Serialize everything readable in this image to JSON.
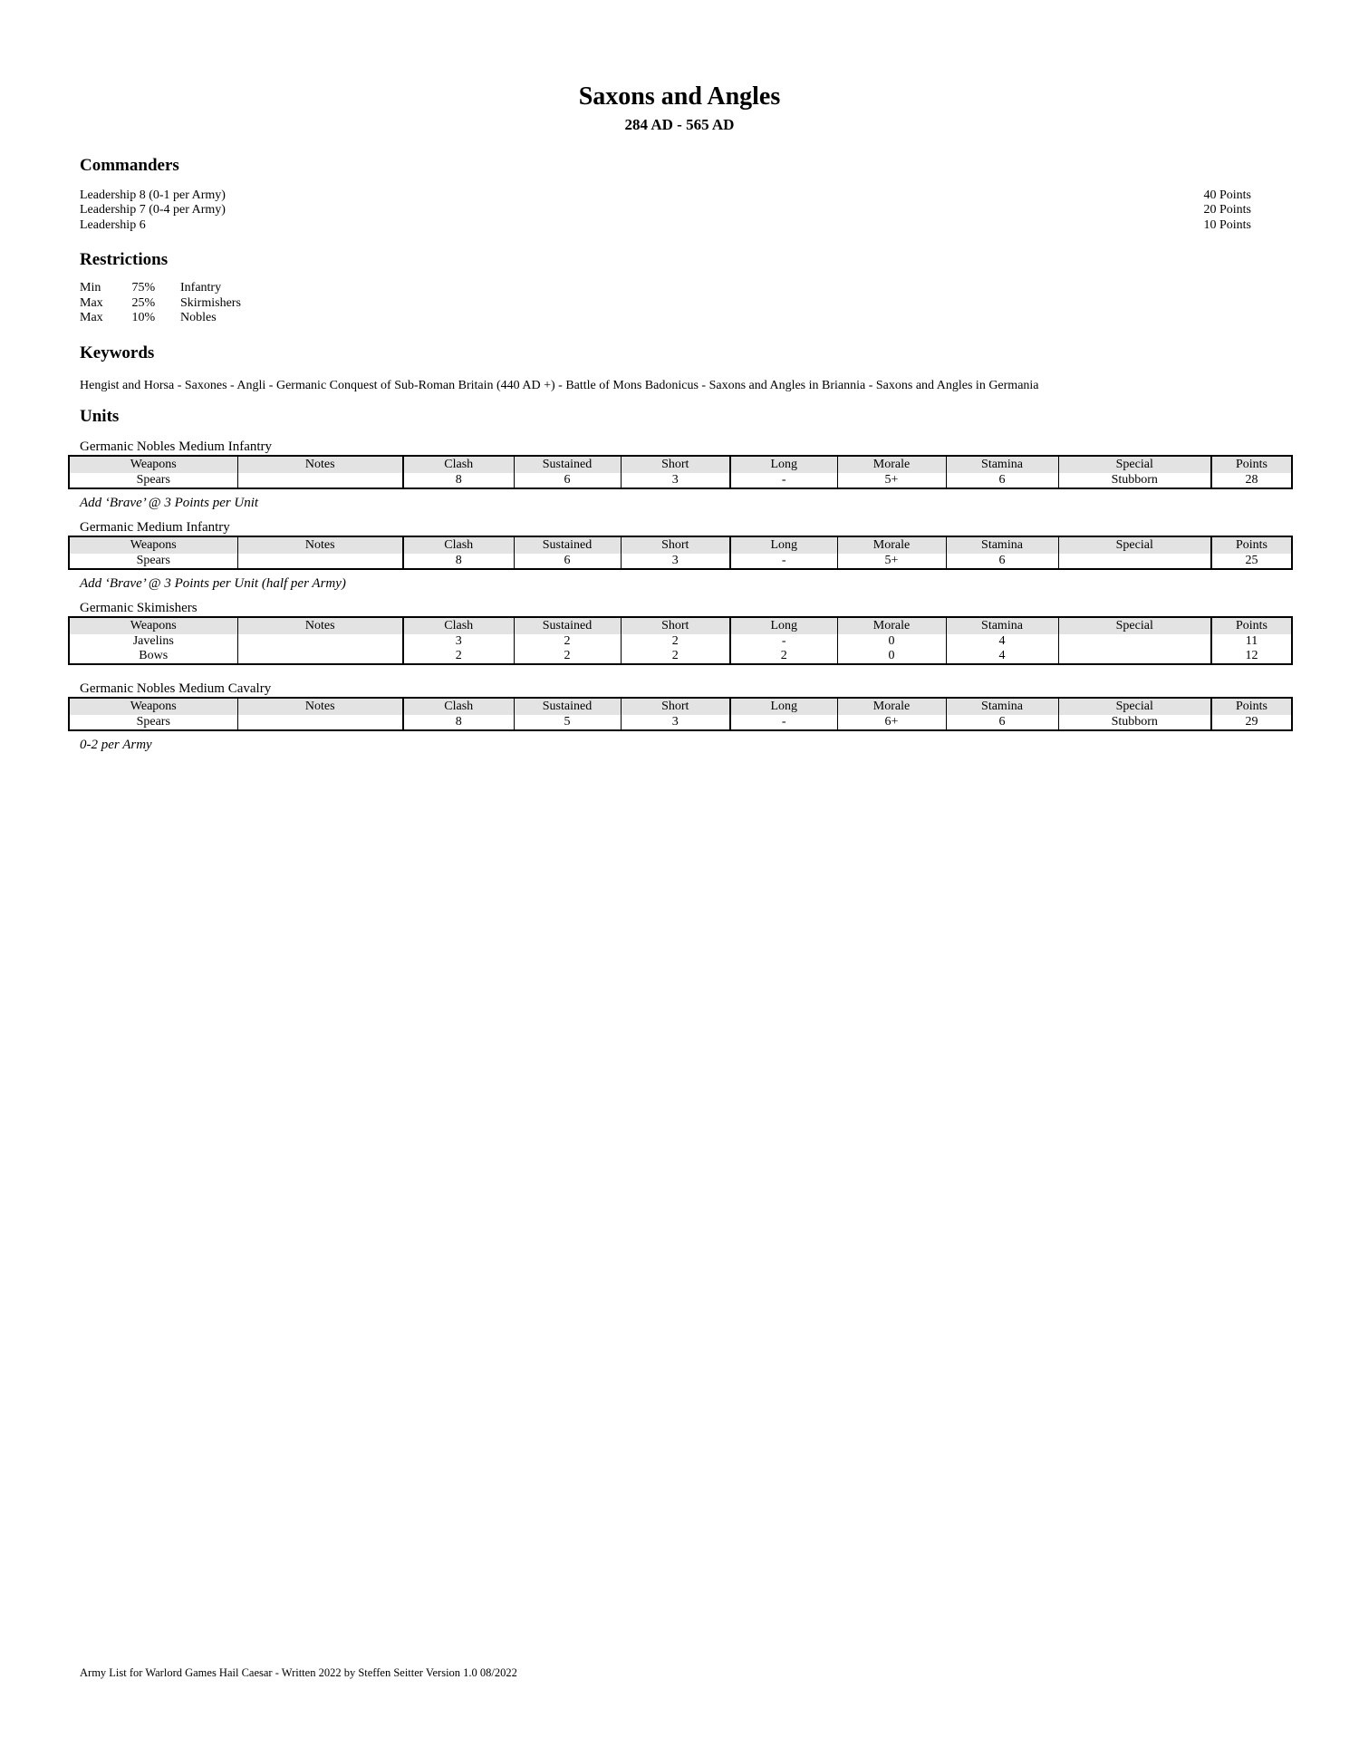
{
  "page": {
    "title": "Saxons and Angles",
    "subtitle": "284 AD - 565 AD",
    "footer": "Army List for Warlord Games Hail Caesar - Written 2022 by Steffen Seitter Version 1.0 08/2022"
  },
  "sections": {
    "commanders": {
      "heading": "Commanders",
      "rows": [
        {
          "label": "Leadership 8 (0-1 per Army)",
          "points": "40 Points"
        },
        {
          "label": "Leadership 7 (0-4 per Army)",
          "points": "20 Points"
        },
        {
          "label": "Leadership 6",
          "points": "10 Points"
        }
      ]
    },
    "restrictions": {
      "heading": "Restrictions",
      "rows": [
        {
          "limit": "Min",
          "percent": "75%",
          "category": "Infantry"
        },
        {
          "limit": "Max",
          "percent": "25%",
          "category": "Skirmishers"
        },
        {
          "limit": "Max",
          "percent": "10%",
          "category": "Nobles"
        }
      ]
    },
    "keywords": {
      "heading": "Keywords",
      "text": "Hengist and Horsa - Saxones - Angli - Germanic Conquest of Sub-Roman Britain (440 AD +) - Battle of Mons Badonicus - Saxons and Angles in Briannia - Saxons and Angles in Germania"
    },
    "units": {
      "heading": "Units",
      "columns": [
        "Weapons",
        "Notes",
        "Clash",
        "Sustained",
        "Short",
        "Long",
        "Morale",
        "Stamina",
        "Special",
        "Points"
      ],
      "tables": [
        {
          "caption": "Germanic Nobles Medium Infantry",
          "rows": [
            [
              "Spears",
              "",
              "8",
              "6",
              "3",
              "-",
              "5+",
              "6",
              "Stubborn",
              "28"
            ]
          ],
          "note": "Add ‘Brave’ @ 3 Points per Unit"
        },
        {
          "caption": "Germanic Medium Infantry",
          "rows": [
            [
              "Spears",
              "",
              "8",
              "6",
              "3",
              "-",
              "5+",
              "6",
              "",
              "25"
            ]
          ],
          "note": "Add ‘Brave’ @ 3 Points per Unit (half per Army)"
        },
        {
          "caption": "Germanic Skimishers",
          "rows": [
            [
              "Javelins",
              "",
              "3",
              "2",
              "2",
              "-",
              "0",
              "4",
              "",
              "11"
            ],
            [
              "Bows",
              "",
              "2",
              "2",
              "2",
              "2",
              "0",
              "4",
              "",
              "12"
            ]
          ],
          "note": ""
        },
        {
          "caption": "Germanic Nobles Medium Cavalry",
          "rows": [
            [
              "Spears",
              "",
              "8",
              "5",
              "3",
              "-",
              "6+",
              "6",
              "Stubborn",
              "29"
            ]
          ],
          "note": "0-2 per Army"
        }
      ]
    }
  }
}
